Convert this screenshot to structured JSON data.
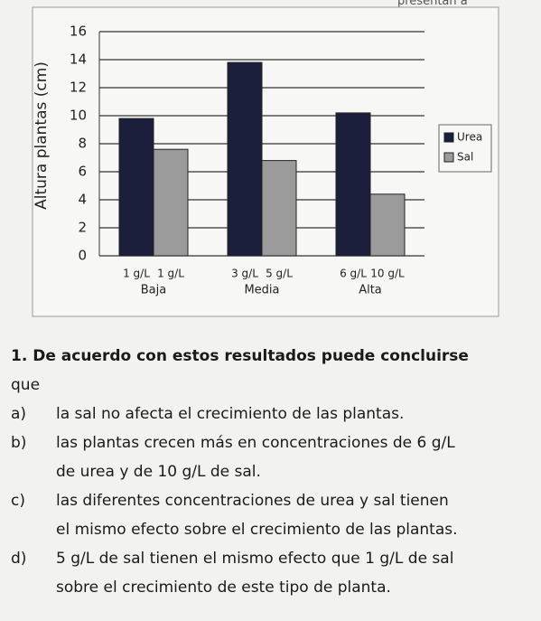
{
  "header_fragment": "presentan a",
  "chart_data": {
    "type": "bar",
    "y_label": "Altura plantas (cm)",
    "categories": [
      "Baja",
      "Media",
      "Alta"
    ],
    "series": [
      {
        "name": "Urea",
        "color": "#1b1f3b",
        "values": [
          9.8,
          13.8,
          10.2
        ],
        "labels": [
          "1 g/L",
          "3 g/L",
          "6 g/L"
        ]
      },
      {
        "name": "Sal",
        "color": "#9b9b9b",
        "values": [
          7.6,
          6.8,
          4.4
        ],
        "labels": [
          "1 g/L",
          "5 g/L",
          "10 g/L"
        ]
      }
    ],
    "ylim": [
      0,
      16
    ],
    "yticks": [
      0,
      2,
      4,
      6,
      8,
      10,
      12,
      14,
      16
    ],
    "grid": true,
    "legend": "right"
  },
  "question": {
    "stem_lines": [
      "1. De acuerdo con estos resultados puede concluirse",
      "que"
    ],
    "options": [
      {
        "letter": "a)",
        "lines": [
          "la sal no afecta el crecimiento de las plantas."
        ]
      },
      {
        "letter": "b)",
        "lines": [
          "las plantas crecen más en concentraciones de 6 g/L",
          "de urea y de 10 g/L de sal."
        ]
      },
      {
        "letter": "c)",
        "lines": [
          "las diferentes concentraciones de urea y sal tienen",
          "el mismo efecto sobre el crecimiento de las plantas."
        ]
      },
      {
        "letter": "d)",
        "lines": [
          "5 g/L de sal tienen el mismo efecto que 1 g/L de sal",
          "sobre el crecimiento de este tipo de planta."
        ]
      }
    ]
  }
}
